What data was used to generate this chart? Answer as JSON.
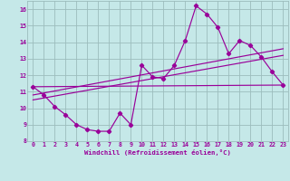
{
  "xlabel": "Windchill (Refroidissement éolien,°C)",
  "background_color": "#c5e8e8",
  "grid_color": "#9cbcbc",
  "line_color": "#990099",
  "xlim": [
    -0.5,
    23.5
  ],
  "ylim": [
    8,
    16.5
  ],
  "xticks": [
    0,
    1,
    2,
    3,
    4,
    5,
    6,
    7,
    8,
    9,
    10,
    11,
    12,
    13,
    14,
    15,
    16,
    17,
    18,
    19,
    20,
    21,
    22,
    23
  ],
  "yticks": [
    8,
    9,
    10,
    11,
    12,
    13,
    14,
    15,
    16
  ],
  "line1_x": [
    0,
    1,
    2,
    3,
    4,
    5,
    6,
    7,
    8,
    9,
    10,
    11,
    12,
    13,
    14,
    15,
    16,
    17,
    18,
    19,
    20,
    21,
    22,
    23
  ],
  "line1_y": [
    11.3,
    10.8,
    10.1,
    9.6,
    9.0,
    8.7,
    8.6,
    8.6,
    9.7,
    9.0,
    12.6,
    11.9,
    11.8,
    12.6,
    14.1,
    16.2,
    15.7,
    14.9,
    13.3,
    14.1,
    13.8,
    13.1,
    12.2,
    11.4
  ],
  "line2_x": [
    0,
    23
  ],
  "line2_y": [
    11.3,
    11.4
  ],
  "line3_x": [
    0,
    23
  ],
  "line3_y": [
    10.8,
    13.6
  ],
  "line4_x": [
    0,
    23
  ],
  "line4_y": [
    10.5,
    13.2
  ]
}
